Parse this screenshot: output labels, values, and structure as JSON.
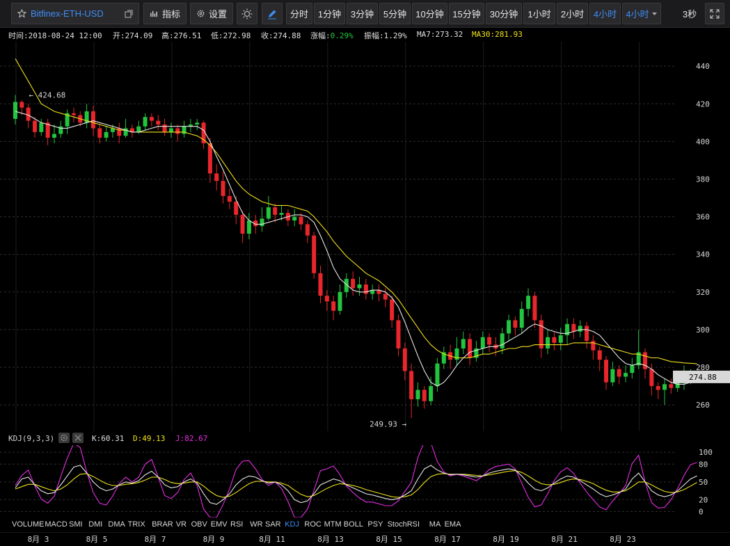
{
  "toolbar": {
    "symbol": "Bitfinex-ETH-USD",
    "indicators_label": "指标",
    "settings_label": "设置",
    "intervals": [
      "分时",
      "1分钟",
      "3分钟",
      "5分钟",
      "10分钟",
      "15分钟",
      "30分钟",
      "1小时",
      "2小时",
      "4小时"
    ],
    "active_interval": "4小时",
    "interval_dropdown": "4小时",
    "refresh": "3秒",
    "accent_color": "#3d8ef5"
  },
  "info": {
    "time": "时间:2018-08-24 12:00",
    "open": "开:274.09",
    "high": "高:276.51",
    "low": "低:272.98",
    "close": "收:274.88",
    "change_label": "涨幅:",
    "change_value": "0.29%",
    "amplitude": "振幅:1.29%",
    "ma7": "MA7:273.32",
    "ma30": "MA30:281.93"
  },
  "kdj": {
    "title": "KDJ(9,3,3)",
    "k": "K:60.31",
    "d": "D:49.13",
    "j": "J:82.67"
  },
  "indicator_menu": [
    "VOLUME",
    "MACD",
    "SMI",
    "DMI",
    "DMA",
    "TRIX",
    "BRAR",
    "VR",
    "OBV",
    "EMV",
    "RSI",
    "WR",
    "SAR",
    "KDJ",
    "ROC",
    "MTM",
    "BOLL",
    "PSY",
    "StochRSI",
    "MA",
    "EMA"
  ],
  "active_indicator": "KDJ",
  "colors": {
    "up": "#23c43e",
    "down": "#e8262b",
    "ma7": "#e8e8e8",
    "ma30": "#f2e21a",
    "j": "#e52ee5",
    "grid": "#2e2e2e"
  },
  "chart_data": {
    "type": "candlestick",
    "interval": "4小时",
    "y_ticks": [
      260,
      280,
      300,
      320,
      340,
      360,
      380,
      400,
      420,
      440
    ],
    "ylim": [
      246,
      453
    ],
    "x_ticks": [
      "8月 3",
      "8月 5",
      "8月 7",
      "8月 9",
      "8月 11",
      "8月 13",
      "8月 15",
      "8月 17",
      "8月 19",
      "8月 21",
      "8月 23"
    ],
    "last_price": "274.88",
    "max_label": "424.68",
    "min_label": "249.93",
    "candles": [
      [
        412,
        421,
        424.7,
        409
      ],
      [
        421,
        418,
        422,
        414
      ],
      [
        418,
        411,
        420,
        407
      ],
      [
        411,
        405,
        413,
        402
      ],
      [
        405,
        410,
        412,
        403
      ],
      [
        410,
        402,
        412,
        398
      ],
      [
        402,
        404,
        409,
        399
      ],
      [
        404,
        408,
        411,
        402
      ],
      [
        408,
        415,
        417,
        404
      ],
      [
        415,
        414,
        418,
        410
      ],
      [
        414,
        410,
        416,
        408
      ],
      [
        410,
        416,
        420,
        407
      ],
      [
        416,
        407,
        419,
        403
      ],
      [
        407,
        402,
        409,
        399
      ],
      [
        402,
        405,
        408,
        400
      ],
      [
        405,
        407,
        409,
        402
      ],
      [
        407,
        403,
        410,
        399
      ],
      [
        403,
        407,
        412,
        402
      ],
      [
        407,
        405,
        409,
        402
      ],
      [
        405,
        408,
        411,
        404
      ],
      [
        408,
        413,
        415,
        406
      ],
      [
        413,
        411,
        415,
        408
      ],
      [
        411,
        409,
        414,
        406
      ],
      [
        409,
        405,
        412,
        403
      ],
      [
        405,
        407,
        410,
        402
      ],
      [
        407,
        404,
        409,
        400
      ],
      [
        404,
        408,
        411,
        402
      ],
      [
        408,
        409,
        412,
        405
      ],
      [
        409,
        410,
        412,
        406
      ],
      [
        410,
        399,
        411,
        396
      ],
      [
        399,
        383,
        402,
        378
      ],
      [
        383,
        379,
        388,
        374
      ],
      [
        379,
        371,
        384,
        367
      ],
      [
        371,
        368,
        375,
        364
      ],
      [
        368,
        361,
        371,
        356
      ],
      [
        361,
        351,
        363,
        346
      ],
      [
        351,
        358,
        362,
        348
      ],
      [
        358,
        355,
        361,
        351
      ],
      [
        355,
        359,
        365,
        352
      ],
      [
        359,
        365,
        371,
        358
      ],
      [
        365,
        361,
        367,
        357
      ],
      [
        361,
        362,
        366,
        358
      ],
      [
        362,
        358,
        364,
        355
      ],
      [
        358,
        360,
        364,
        355
      ],
      [
        360,
        356,
        362,
        353
      ],
      [
        356,
        350,
        358,
        346
      ],
      [
        350,
        330,
        352,
        327
      ],
      [
        330,
        318,
        334,
        314
      ],
      [
        318,
        315,
        321,
        310
      ],
      [
        315,
        310,
        318,
        305
      ],
      [
        310,
        320,
        324,
        308
      ],
      [
        320,
        327,
        330,
        317
      ],
      [
        327,
        322,
        331,
        318
      ],
      [
        322,
        324,
        328,
        318
      ],
      [
        324,
        319,
        327,
        316
      ],
      [
        319,
        321,
        324,
        316
      ],
      [
        321,
        319,
        324,
        315
      ],
      [
        319,
        316,
        322,
        312
      ],
      [
        316,
        305,
        318,
        301
      ],
      [
        305,
        290,
        308,
        286
      ],
      [
        290,
        278,
        293,
        273
      ],
      [
        278,
        263,
        282,
        253
      ],
      [
        263,
        268,
        272,
        259
      ],
      [
        268,
        262,
        270,
        258
      ],
      [
        262,
        270,
        275,
        260
      ],
      [
        270,
        282,
        285,
        267
      ],
      [
        282,
        288,
        291,
        279
      ],
      [
        288,
        284,
        292,
        279
      ],
      [
        284,
        290,
        296,
        281
      ],
      [
        290,
        295,
        299,
        287
      ],
      [
        295,
        285,
        298,
        281
      ],
      [
        285,
        290,
        294,
        283
      ],
      [
        290,
        296,
        299,
        287
      ],
      [
        296,
        292,
        298,
        288
      ],
      [
        292,
        290,
        296,
        286
      ],
      [
        290,
        298,
        301,
        287
      ],
      [
        298,
        305,
        308,
        294
      ],
      [
        305,
        301,
        307,
        297
      ],
      [
        301,
        311,
        315,
        298
      ],
      [
        311,
        318,
        322,
        307
      ],
      [
        318,
        305,
        320,
        301
      ],
      [
        305,
        290,
        308,
        285
      ],
      [
        290,
        296,
        300,
        287
      ],
      [
        296,
        293,
        299,
        289
      ],
      [
        293,
        297,
        301,
        289
      ],
      [
        297,
        303,
        306,
        292
      ],
      [
        303,
        299,
        306,
        295
      ],
      [
        299,
        302,
        305,
        296
      ],
      [
        302,
        294,
        304,
        290
      ],
      [
        294,
        289,
        297,
        284
      ],
      [
        289,
        284,
        291,
        278
      ],
      [
        284,
        272,
        286,
        268
      ],
      [
        272,
        279,
        283,
        270
      ],
      [
        279,
        275,
        281,
        271
      ],
      [
        275,
        277,
        281,
        272
      ],
      [
        277,
        281,
        285,
        274
      ],
      [
        281,
        288,
        300,
        279
      ],
      [
        288,
        279,
        290,
        274
      ],
      [
        279,
        270,
        282,
        265
      ],
      [
        270,
        268,
        272,
        263
      ],
      [
        268,
        271,
        274,
        260
      ],
      [
        271,
        269,
        274,
        266
      ],
      [
        269,
        272,
        276,
        267
      ],
      [
        272,
        274,
        281,
        268
      ],
      [
        274,
        276,
        279,
        271
      ],
      [
        274.09,
        274.88,
        276.51,
        272.98
      ]
    ],
    "ma7": [
      416,
      415,
      414,
      412,
      410,
      409,
      408,
      407,
      407,
      408,
      409,
      410,
      411,
      410,
      409,
      408,
      407,
      406,
      405,
      405,
      406,
      407,
      408,
      408,
      408,
      408,
      408,
      408,
      408,
      406,
      400,
      392,
      385,
      377,
      369,
      362,
      358,
      356,
      356,
      357,
      358,
      359,
      360,
      361,
      361,
      360,
      357,
      350,
      342,
      333,
      327,
      324,
      321,
      320,
      320,
      321,
      321,
      320,
      317,
      312,
      304,
      295,
      286,
      278,
      272,
      270,
      272,
      276,
      281,
      285,
      288,
      289,
      290,
      291,
      291,
      292,
      294,
      296,
      298,
      301,
      303,
      302,
      300,
      299,
      298,
      298,
      299,
      300,
      300,
      299,
      297,
      293,
      289,
      285,
      282,
      281,
      282,
      281,
      279,
      276,
      274,
      272,
      271,
      271,
      272,
      273.3
    ],
    "ma30": [
      444,
      438,
      432,
      426,
      420,
      418,
      416,
      415,
      414,
      413,
      412,
      411,
      410,
      409,
      408,
      407,
      406,
      406,
      405,
      405,
      405,
      405,
      405,
      405,
      405,
      405,
      405,
      404,
      403,
      401,
      398,
      394,
      389,
      384,
      379,
      375,
      372,
      370,
      368,
      367,
      366,
      366,
      366,
      365,
      364,
      363,
      360,
      356,
      352,
      347,
      343,
      339,
      336,
      333,
      330,
      328,
      326,
      323,
      320,
      316,
      311,
      306,
      301,
      296,
      292,
      289,
      287,
      286,
      285,
      285,
      285,
      286,
      287,
      287,
      288,
      289,
      290,
      290,
      291,
      291,
      292,
      292,
      292,
      292,
      292,
      292,
      293,
      293,
      293,
      293,
      292,
      291,
      290,
      289,
      288,
      287,
      287,
      286,
      285,
      285,
      284,
      283,
      282.7,
      282.3,
      282.1,
      281.9
    ],
    "kdj_ticks": [
      0,
      20,
      50,
      80,
      100
    ],
    "kdj_ylim": [
      -10,
      112
    ],
    "k": [
      40,
      55,
      58,
      45,
      35,
      30,
      32,
      45,
      60,
      75,
      78,
      65,
      50,
      40,
      35,
      38,
      45,
      50,
      48,
      52,
      62,
      68,
      58,
      45,
      40,
      42,
      50,
      55,
      48,
      30,
      15,
      12,
      20,
      30,
      45,
      55,
      60,
      58,
      52,
      48,
      50,
      45,
      35,
      20,
      15,
      18,
      30,
      45,
      50,
      55,
      52,
      45,
      40,
      35,
      30,
      28,
      25,
      22,
      20,
      22,
      28,
      35,
      55,
      72,
      78,
      70,
      65,
      62,
      63,
      62,
      60,
      58,
      60,
      65,
      68,
      70,
      72,
      70,
      60,
      48,
      38,
      35,
      40,
      48,
      55,
      60,
      58,
      52,
      45,
      38,
      30,
      25,
      28,
      32,
      38,
      55,
      65,
      50,
      35,
      28,
      25,
      28,
      35,
      45,
      55,
      60.31
    ],
    "d": [
      38,
      42,
      46,
      46,
      42,
      38,
      35,
      38,
      45,
      55,
      63,
      64,
      59,
      53,
      47,
      44,
      44,
      46,
      47,
      49,
      53,
      58,
      58,
      54,
      49,
      47,
      48,
      50,
      50,
      43,
      34,
      27,
      24,
      26,
      32,
      40,
      47,
      51,
      51,
      50,
      50,
      48,
      44,
      36,
      29,
      25,
      27,
      33,
      39,
      44,
      47,
      46,
      44,
      41,
      37,
      34,
      31,
      28,
      25,
      24,
      25,
      28,
      37,
      49,
      59,
      63,
      64,
      63,
      63,
      63,
      62,
      61,
      60,
      62,
      64,
      66,
      68,
      69,
      66,
      60,
      53,
      47,
      45,
      46,
      49,
      53,
      55,
      54,
      51,
      47,
      41,
      36,
      33,
      33,
      35,
      42,
      50,
      50,
      45,
      39,
      34,
      32,
      33,
      37,
      43,
      49.13
    ],
    "j": [
      44,
      61,
      70,
      43,
      21,
      14,
      26,
      59,
      90,
      115,
      108,
      67,
      32,
      14,
      11,
      26,
      47,
      58,
      50,
      58,
      80,
      88,
      58,
      27,
      22,
      32,
      54,
      65,
      44,
      4,
      -10,
      -10,
      12,
      38,
      71,
      85,
      86,
      72,
      54,
      44,
      50,
      39,
      17,
      -10,
      -10,
      4,
      36,
      69,
      72,
      77,
      62,
      43,
      32,
      23,
      16,
      16,
      13,
      10,
      10,
      18,
      34,
      49,
      91,
      118,
      116,
      84,
      67,
      60,
      63,
      60,
      56,
      52,
      60,
      71,
      76,
      78,
      80,
      72,
      48,
      24,
      8,
      11,
      30,
      52,
      67,
      74,
      64,
      48,
      33,
      20,
      8,
      3,
      18,
      30,
      44,
      81,
      95,
      50,
      15,
      6,
      7,
      20,
      39,
      61,
      79,
      82.67
    ]
  }
}
